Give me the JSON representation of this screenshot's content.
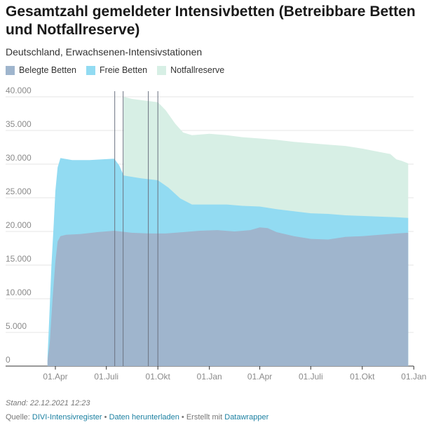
{
  "header": {
    "title": "Gesamtzahl gemeldeter Intensivbetten (Betreibbare Betten und Notfallreserve)",
    "subtitle": "Deutschland, Erwachsenen-Intensivstationen"
  },
  "legend": [
    {
      "label": "Belegte Betten",
      "color": "#9fb5cd"
    },
    {
      "label": "Freie Betten",
      "color": "#92dbf2"
    },
    {
      "label": "Notfallreserve",
      "color": "#d7efe5"
    }
  ],
  "footer": {
    "stand": "Stand: 22.12.2021 12:23",
    "source_prefix": "Quelle:",
    "source_link": "DIVI-Intensivregister",
    "sep": "•",
    "download_link": "Daten herunterladen",
    "created_prefix": "Erstellt mit",
    "created_link": "Datawrapper"
  },
  "chart_data": {
    "type": "area",
    "stacked": true,
    "x_unit": "date",
    "x_range": [
      "2020-03-01",
      "2022-01-01"
    ],
    "ylim": [
      0,
      40000
    ],
    "y_ticks": [
      {
        "value": 0,
        "label": "0"
      },
      {
        "value": 5000,
        "label": "5.000"
      },
      {
        "value": 10000,
        "label": "10.000"
      },
      {
        "value": 15000,
        "label": "15.000"
      },
      {
        "value": 20000,
        "label": "20.000"
      },
      {
        "value": 25000,
        "label": "25.000"
      },
      {
        "value": 30000,
        "label": "30.000"
      },
      {
        "value": 35000,
        "label": "35.000"
      },
      {
        "value": 40000,
        "label": "40.000"
      }
    ],
    "x_ticks": [
      {
        "date": "2020-04-01",
        "label": "01.Apr"
      },
      {
        "date": "2020-07-01",
        "label": "01.Juli"
      },
      {
        "date": "2020-10-01",
        "label": "01.Okt"
      },
      {
        "date": "2021-01-01",
        "label": "01.Jan"
      },
      {
        "date": "2021-04-01",
        "label": "01.Apr"
      },
      {
        "date": "2021-07-01",
        "label": "01.Juli"
      },
      {
        "date": "2021-10-01",
        "label": "01.Okt"
      },
      {
        "date": "2022-01-01",
        "label": "01.Jan"
      }
    ],
    "vertical_lines": [
      "2020-07-16",
      "2020-07-31",
      "2020-09-14",
      "2020-10-01"
    ],
    "series": [
      {
        "name": "Belegte Betten",
        "color": "#9fb5cd",
        "points": [
          [
            "2020-03-18",
            800
          ],
          [
            "2020-03-22",
            3500
          ],
          [
            "2020-03-27",
            10000
          ],
          [
            "2020-04-01",
            15500
          ],
          [
            "2020-04-05",
            18500
          ],
          [
            "2020-04-10",
            19300
          ],
          [
            "2020-04-20",
            19500
          ],
          [
            "2020-05-15",
            19600
          ],
          [
            "2020-06-15",
            19900
          ],
          [
            "2020-07-15",
            20100
          ],
          [
            "2020-08-15",
            19800
          ],
          [
            "2020-09-15",
            19700
          ],
          [
            "2020-10-15",
            19700
          ],
          [
            "2020-11-15",
            19900
          ],
          [
            "2020-12-15",
            20100
          ],
          [
            "2021-01-15",
            20200
          ],
          [
            "2021-02-15",
            20000
          ],
          [
            "2021-03-15",
            20200
          ],
          [
            "2021-04-01",
            20600
          ],
          [
            "2021-04-15",
            20500
          ],
          [
            "2021-05-01",
            19900
          ],
          [
            "2021-06-01",
            19300
          ],
          [
            "2021-07-01",
            18900
          ],
          [
            "2021-08-01",
            18800
          ],
          [
            "2021-09-01",
            19200
          ],
          [
            "2021-10-01",
            19300
          ],
          [
            "2021-11-01",
            19500
          ],
          [
            "2021-12-01",
            19700
          ],
          [
            "2021-12-22",
            19800
          ]
        ]
      },
      {
        "name": "Freie Betten",
        "color": "#92dbf2",
        "points": [
          [
            "2020-03-18",
            1300
          ],
          [
            "2020-03-20",
            5000
          ],
          [
            "2020-03-25",
            15000
          ],
          [
            "2020-03-29",
            21000
          ],
          [
            "2020-04-01",
            26000
          ],
          [
            "2020-04-05",
            29500
          ],
          [
            "2020-04-10",
            30900
          ],
          [
            "2020-05-01",
            30600
          ],
          [
            "2020-06-01",
            30600
          ],
          [
            "2020-07-15",
            30800
          ],
          [
            "2020-07-24",
            29800
          ],
          [
            "2020-08-01",
            28300
          ],
          [
            "2020-09-01",
            27900
          ],
          [
            "2020-10-01",
            27600
          ],
          [
            "2020-10-20",
            26500
          ],
          [
            "2020-11-10",
            24900
          ],
          [
            "2020-12-01",
            24000
          ],
          [
            "2021-01-01",
            24000
          ],
          [
            "2021-02-01",
            24000
          ],
          [
            "2021-03-01",
            23800
          ],
          [
            "2021-04-01",
            23700
          ],
          [
            "2021-05-01",
            23300
          ],
          [
            "2021-06-01",
            23000
          ],
          [
            "2021-07-01",
            22700
          ],
          [
            "2021-08-01",
            22600
          ],
          [
            "2021-09-01",
            22400
          ],
          [
            "2021-10-01",
            22300
          ],
          [
            "2021-11-01",
            22200
          ],
          [
            "2021-12-01",
            22100
          ],
          [
            "2021-12-22",
            22000
          ]
        ]
      },
      {
        "name": "Notfallreserve",
        "color": "#d7efe5",
        "points": [
          [
            "2020-08-01",
            40000
          ],
          [
            "2020-08-15",
            39700
          ],
          [
            "2020-09-01",
            39500
          ],
          [
            "2020-10-01",
            39200
          ],
          [
            "2020-10-15",
            38000
          ],
          [
            "2020-11-01",
            36000
          ],
          [
            "2020-11-15",
            34700
          ],
          [
            "2020-12-01",
            34300
          ],
          [
            "2021-01-01",
            34500
          ],
          [
            "2021-02-01",
            34300
          ],
          [
            "2021-03-01",
            34000
          ],
          [
            "2021-04-01",
            33800
          ],
          [
            "2021-05-01",
            33600
          ],
          [
            "2021-06-01",
            33300
          ],
          [
            "2021-07-01",
            33100
          ],
          [
            "2021-08-01",
            32900
          ],
          [
            "2021-09-01",
            32700
          ],
          [
            "2021-10-01",
            32300
          ],
          [
            "2021-11-01",
            31800
          ],
          [
            "2021-11-20",
            31500
          ],
          [
            "2021-12-01",
            30700
          ],
          [
            "2021-12-10",
            30500
          ],
          [
            "2021-12-22",
            30100
          ]
        ]
      }
    ]
  }
}
